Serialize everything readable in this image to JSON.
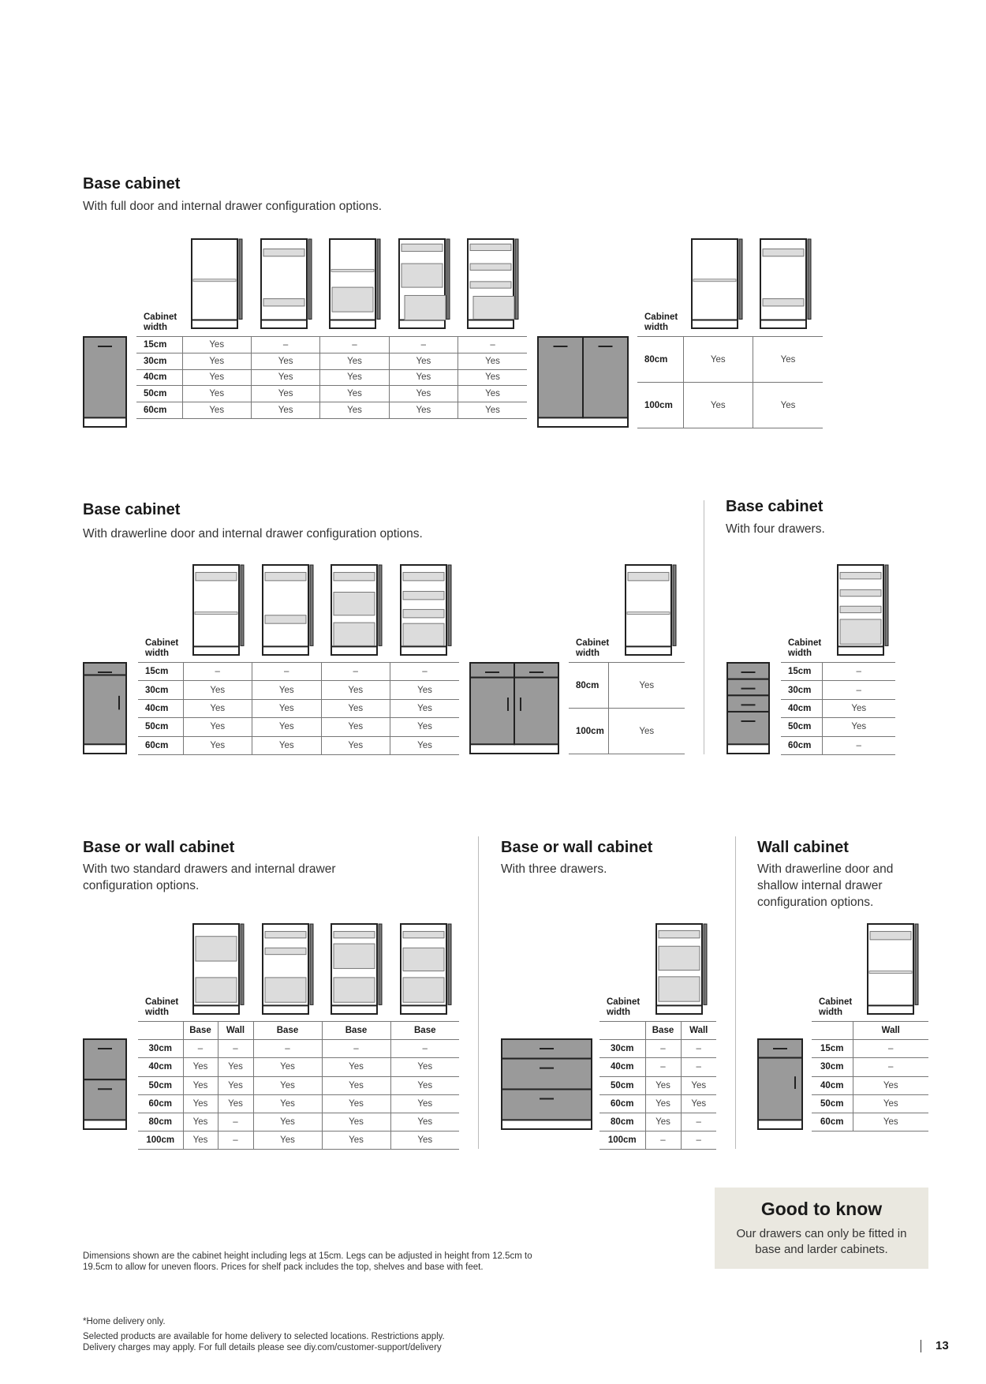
{
  "sections": [
    {
      "title": "Base cabinet",
      "subtitle": "With full door and internal drawer configuration options.",
      "cabinet_width_label": "Cabinet width",
      "table": {
        "headers": [],
        "rows": [
          {
            "width": "15cm",
            "values": [
              "Yes",
              "–",
              "–",
              "–",
              "–"
            ]
          },
          {
            "width": "30cm",
            "values": [
              "Yes",
              "Yes",
              "Yes",
              "Yes",
              "Yes"
            ]
          },
          {
            "width": "40cm",
            "values": [
              "Yes",
              "Yes",
              "Yes",
              "Yes",
              "Yes"
            ]
          },
          {
            "width": "50cm",
            "values": [
              "Yes",
              "Yes",
              "Yes",
              "Yes",
              "Yes"
            ]
          },
          {
            "width": "60cm",
            "values": [
              "Yes",
              "Yes",
              "Yes",
              "Yes",
              "Yes"
            ]
          }
        ]
      }
    },
    {
      "title": "",
      "subtitle": "",
      "cabinet_width_label": "Cabinet width",
      "table": {
        "headers": [],
        "rows": [
          {
            "width": "80cm",
            "values": [
              "Yes",
              "Yes"
            ]
          },
          {
            "width": "100cm",
            "values": [
              "Yes",
              "Yes"
            ]
          }
        ]
      }
    },
    {
      "title": "Base cabinet",
      "subtitle": "With drawerline door and internal drawer configuration options.",
      "cabinet_width_label": "Cabinet width",
      "table": {
        "headers": [],
        "rows": [
          {
            "width": "15cm",
            "values": [
              "–",
              "–",
              "–",
              "–"
            ]
          },
          {
            "width": "30cm",
            "values": [
              "Yes",
              "Yes",
              "Yes",
              "Yes"
            ]
          },
          {
            "width": "40cm",
            "values": [
              "Yes",
              "Yes",
              "Yes",
              "Yes"
            ]
          },
          {
            "width": "50cm",
            "values": [
              "Yes",
              "Yes",
              "Yes",
              "Yes"
            ]
          },
          {
            "width": "60cm",
            "values": [
              "Yes",
              "Yes",
              "Yes",
              "Yes"
            ]
          }
        ]
      }
    },
    {
      "title": "",
      "subtitle": "",
      "cabinet_width_label": "Cabinet width",
      "table": {
        "headers": [],
        "rows": [
          {
            "width": "80cm",
            "values": [
              "Yes"
            ]
          },
          {
            "width": "100cm",
            "values": [
              "Yes"
            ]
          }
        ]
      }
    },
    {
      "title": "Base cabinet",
      "subtitle": "With four drawers.",
      "cabinet_width_label": "Cabinet width",
      "table": {
        "headers": [],
        "rows": [
          {
            "width": "15cm",
            "values": [
              "–"
            ]
          },
          {
            "width": "30cm",
            "values": [
              "–"
            ]
          },
          {
            "width": "40cm",
            "values": [
              "Yes"
            ]
          },
          {
            "width": "50cm",
            "values": [
              "Yes"
            ]
          },
          {
            "width": "60cm",
            "values": [
              "–"
            ]
          }
        ]
      }
    },
    {
      "title": "Base or wall cabinet",
      "subtitle": "With two standard drawers and internal drawer configuration options.",
      "cabinet_width_label": "Cabinet width",
      "table": {
        "headers": [
          "",
          "Base",
          "Wall",
          "Base",
          "Base",
          "Base"
        ],
        "rows": [
          {
            "width": "30cm",
            "values": [
              "–",
              "–",
              "–",
              "–",
              "–"
            ]
          },
          {
            "width": "40cm",
            "values": [
              "Yes",
              "Yes",
              "Yes",
              "Yes",
              "Yes"
            ]
          },
          {
            "width": "50cm",
            "values": [
              "Yes",
              "Yes",
              "Yes",
              "Yes",
              "Yes"
            ]
          },
          {
            "width": "60cm",
            "values": [
              "Yes",
              "Yes",
              "Yes",
              "Yes",
              "Yes"
            ]
          },
          {
            "width": "80cm",
            "values": [
              "Yes",
              "–",
              "Yes",
              "Yes",
              "Yes"
            ]
          },
          {
            "width": "100cm",
            "values": [
              "Yes",
              "–",
              "Yes",
              "Yes",
              "Yes"
            ]
          }
        ]
      }
    },
    {
      "title": "Base or wall cabinet",
      "subtitle": "With three drawers.",
      "cabinet_width_label": "Cabinet width",
      "table": {
        "headers": [
          "",
          "Base",
          "Wall"
        ],
        "rows": [
          {
            "width": "30cm",
            "values": [
              "–",
              "–"
            ]
          },
          {
            "width": "40cm",
            "values": [
              "–",
              "–"
            ]
          },
          {
            "width": "50cm",
            "values": [
              "Yes",
              "Yes"
            ]
          },
          {
            "width": "60cm",
            "values": [
              "Yes",
              "Yes"
            ]
          },
          {
            "width": "80cm",
            "values": [
              "Yes",
              "–"
            ]
          },
          {
            "width": "100cm",
            "values": [
              "–",
              "–"
            ]
          }
        ]
      }
    },
    {
      "title": "Wall cabinet",
      "subtitle": "With drawerline door and shallow internal drawer configuration options.",
      "cabinet_width_label": "Cabinet width",
      "table": {
        "headers": [
          "",
          "Wall"
        ],
        "rows": [
          {
            "width": "15cm",
            "values": [
              "–"
            ]
          },
          {
            "width": "30cm",
            "values": [
              "–"
            ]
          },
          {
            "width": "40cm",
            "values": [
              "Yes"
            ]
          },
          {
            "width": "50cm",
            "values": [
              "Yes"
            ]
          },
          {
            "width": "60cm",
            "values": [
              "Yes"
            ]
          }
        ]
      }
    }
  ],
  "good_to_know": {
    "title": "Good to know",
    "text": "Our drawers can only be fitted in base and larder cabinets."
  },
  "dimensions_note": "Dimensions shown are the cabinet height including legs at 15cm. Legs can be adjusted in height from 12.5cm to 19.5cm to allow for uneven floors. Prices for shelf pack includes the top, shelves and base with feet.",
  "footer": {
    "delivery_note": "*Home delivery only.",
    "availability": "Selected products are available for home delivery to selected locations. Restrictions apply.",
    "charges": "Delivery charges may apply. For full details please see diy.com/customer-support/delivery"
  },
  "page_number": "13",
  "colors": {
    "cabinet_front": "#9a9a9a",
    "drawer_fill": "#dcdcdc",
    "box_bg": "#eae8e0"
  }
}
